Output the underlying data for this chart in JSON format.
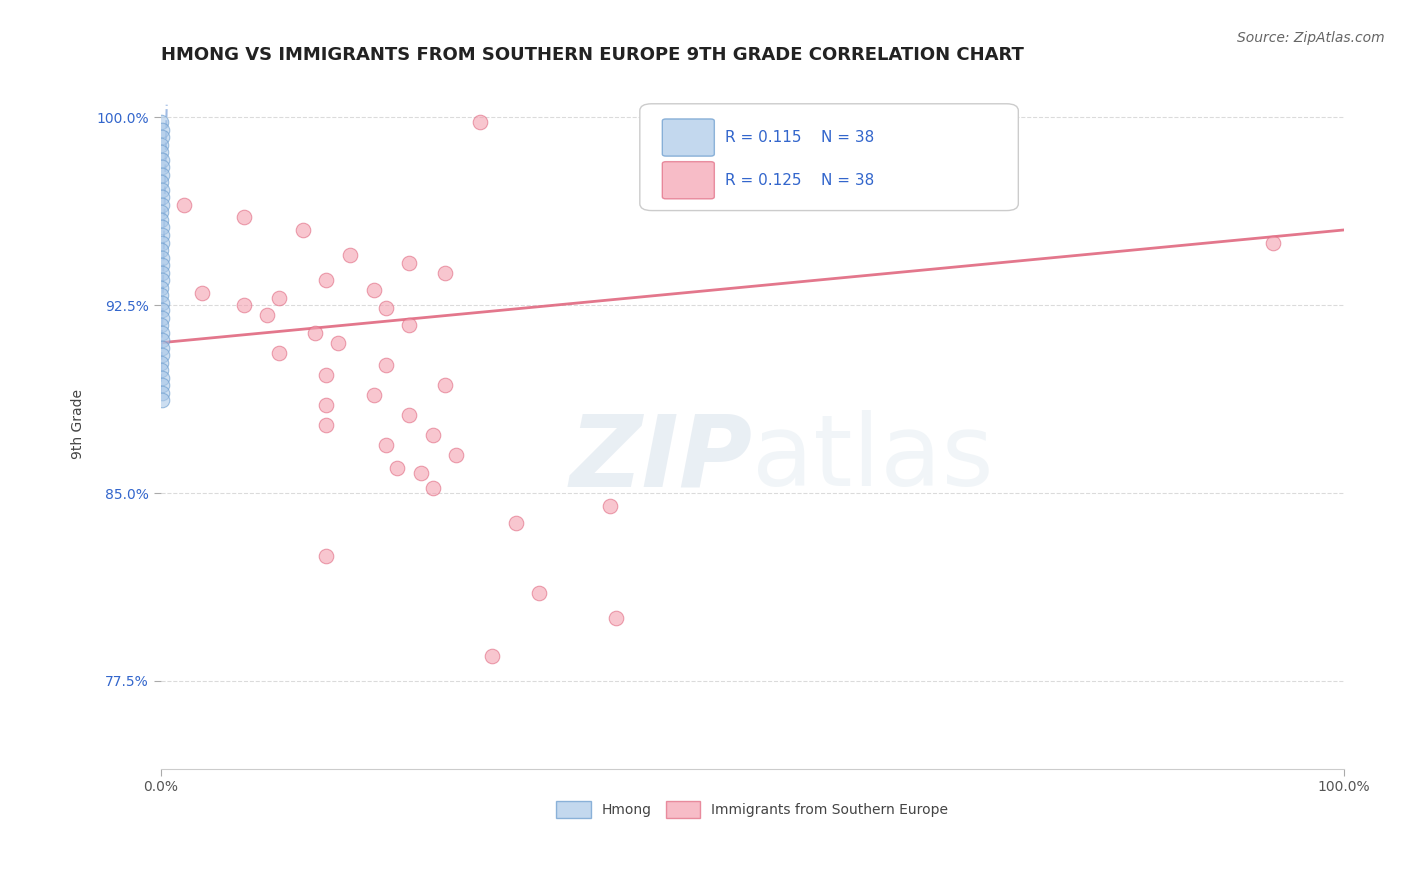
{
  "title": "HMONG VS IMMIGRANTS FROM SOUTHERN EUROPE 9TH GRADE CORRELATION CHART",
  "source": "Source: ZipAtlas.com",
  "ylabel": "9th Grade",
  "xlim": [
    0.0,
    100.0
  ],
  "ylim": [
    74.0,
    101.5
  ],
  "yticks": [
    77.5,
    85.0,
    92.5,
    100.0
  ],
  "xticks": [
    0.0,
    100.0
  ],
  "ytick_labels": [
    "77.5%",
    "85.0%",
    "92.5%",
    "100.0%"
  ],
  "xtick_labels": [
    "0.0%",
    "100.0%"
  ],
  "background_color": "#ffffff",
  "grid_color": "#cccccc",
  "legend1_label": "Hmong",
  "legend2_label": "Immigrants from Southern Europe",
  "r1": 0.115,
  "n1": 38,
  "r2": 0.125,
  "n2": 38,
  "blue_color": "#aac8e8",
  "pink_color": "#f4a0b0",
  "blue_edge_color": "#6699cc",
  "pink_edge_color": "#e06880",
  "blue_line_color": "#88aadd",
  "pink_line_color": "#e06880",
  "watermark_zip": "ZIP",
  "watermark_atlas": "atlas",
  "title_fontsize": 13,
  "axis_label_fontsize": 10,
  "tick_fontsize": 10,
  "legend_fontsize": 11,
  "source_fontsize": 10,
  "blue_points_x": [
    0.05,
    0.08,
    0.1,
    0.05,
    0.06,
    0.08,
    0.1,
    0.12,
    0.05,
    0.07,
    0.09,
    0.11,
    0.05,
    0.06,
    0.08,
    0.1,
    0.12,
    0.05,
    0.07,
    0.09,
    0.11,
    0.13,
    0.05,
    0.06,
    0.08,
    0.1,
    0.12,
    0.05,
    0.07,
    0.09,
    0.11,
    0.13,
    0.05,
    0.06,
    0.08,
    0.1,
    0.12,
    0.14
  ],
  "blue_points_y": [
    99.8,
    99.5,
    99.2,
    98.9,
    98.6,
    98.3,
    98.0,
    97.7,
    97.4,
    97.1,
    96.8,
    96.5,
    96.2,
    95.9,
    95.6,
    95.3,
    95.0,
    94.7,
    94.4,
    94.1,
    93.8,
    93.5,
    93.2,
    92.9,
    92.6,
    92.3,
    92.0,
    91.7,
    91.4,
    91.1,
    90.8,
    90.5,
    90.2,
    89.9,
    89.6,
    89.3,
    89.0,
    88.7
  ],
  "pink_points_x": [
    27.0,
    7.0,
    12.0,
    16.0,
    21.0,
    24.0,
    14.0,
    18.0,
    10.0,
    19.0,
    3.5,
    7.0,
    9.0,
    21.0,
    13.0,
    15.0,
    10.0,
    19.0,
    14.0,
    24.0,
    18.0,
    14.0,
    21.0,
    14.0,
    23.0,
    19.0,
    25.0,
    22.0,
    23.0,
    38.0,
    30.0,
    14.0,
    32.0,
    38.5,
    28.0,
    20.0,
    94.0,
    2.0
  ],
  "pink_points_y": [
    99.8,
    96.0,
    95.5,
    94.5,
    94.2,
    93.8,
    93.5,
    93.1,
    92.8,
    92.4,
    93.0,
    92.5,
    92.1,
    91.7,
    91.4,
    91.0,
    90.6,
    90.1,
    89.7,
    89.3,
    88.9,
    88.5,
    88.1,
    87.7,
    87.3,
    86.9,
    86.5,
    85.8,
    85.2,
    84.5,
    83.8,
    82.5,
    81.0,
    80.0,
    78.5,
    86.0,
    95.0,
    96.5
  ],
  "pink_trend_x0": 0.0,
  "pink_trend_y0": 91.0,
  "pink_trend_x1": 100.0,
  "pink_trend_y1": 95.5,
  "blue_trend_x0": 0.0,
  "blue_trend_y0": 89.0,
  "blue_trend_x1": 0.5,
  "blue_trend_y1": 100.5
}
